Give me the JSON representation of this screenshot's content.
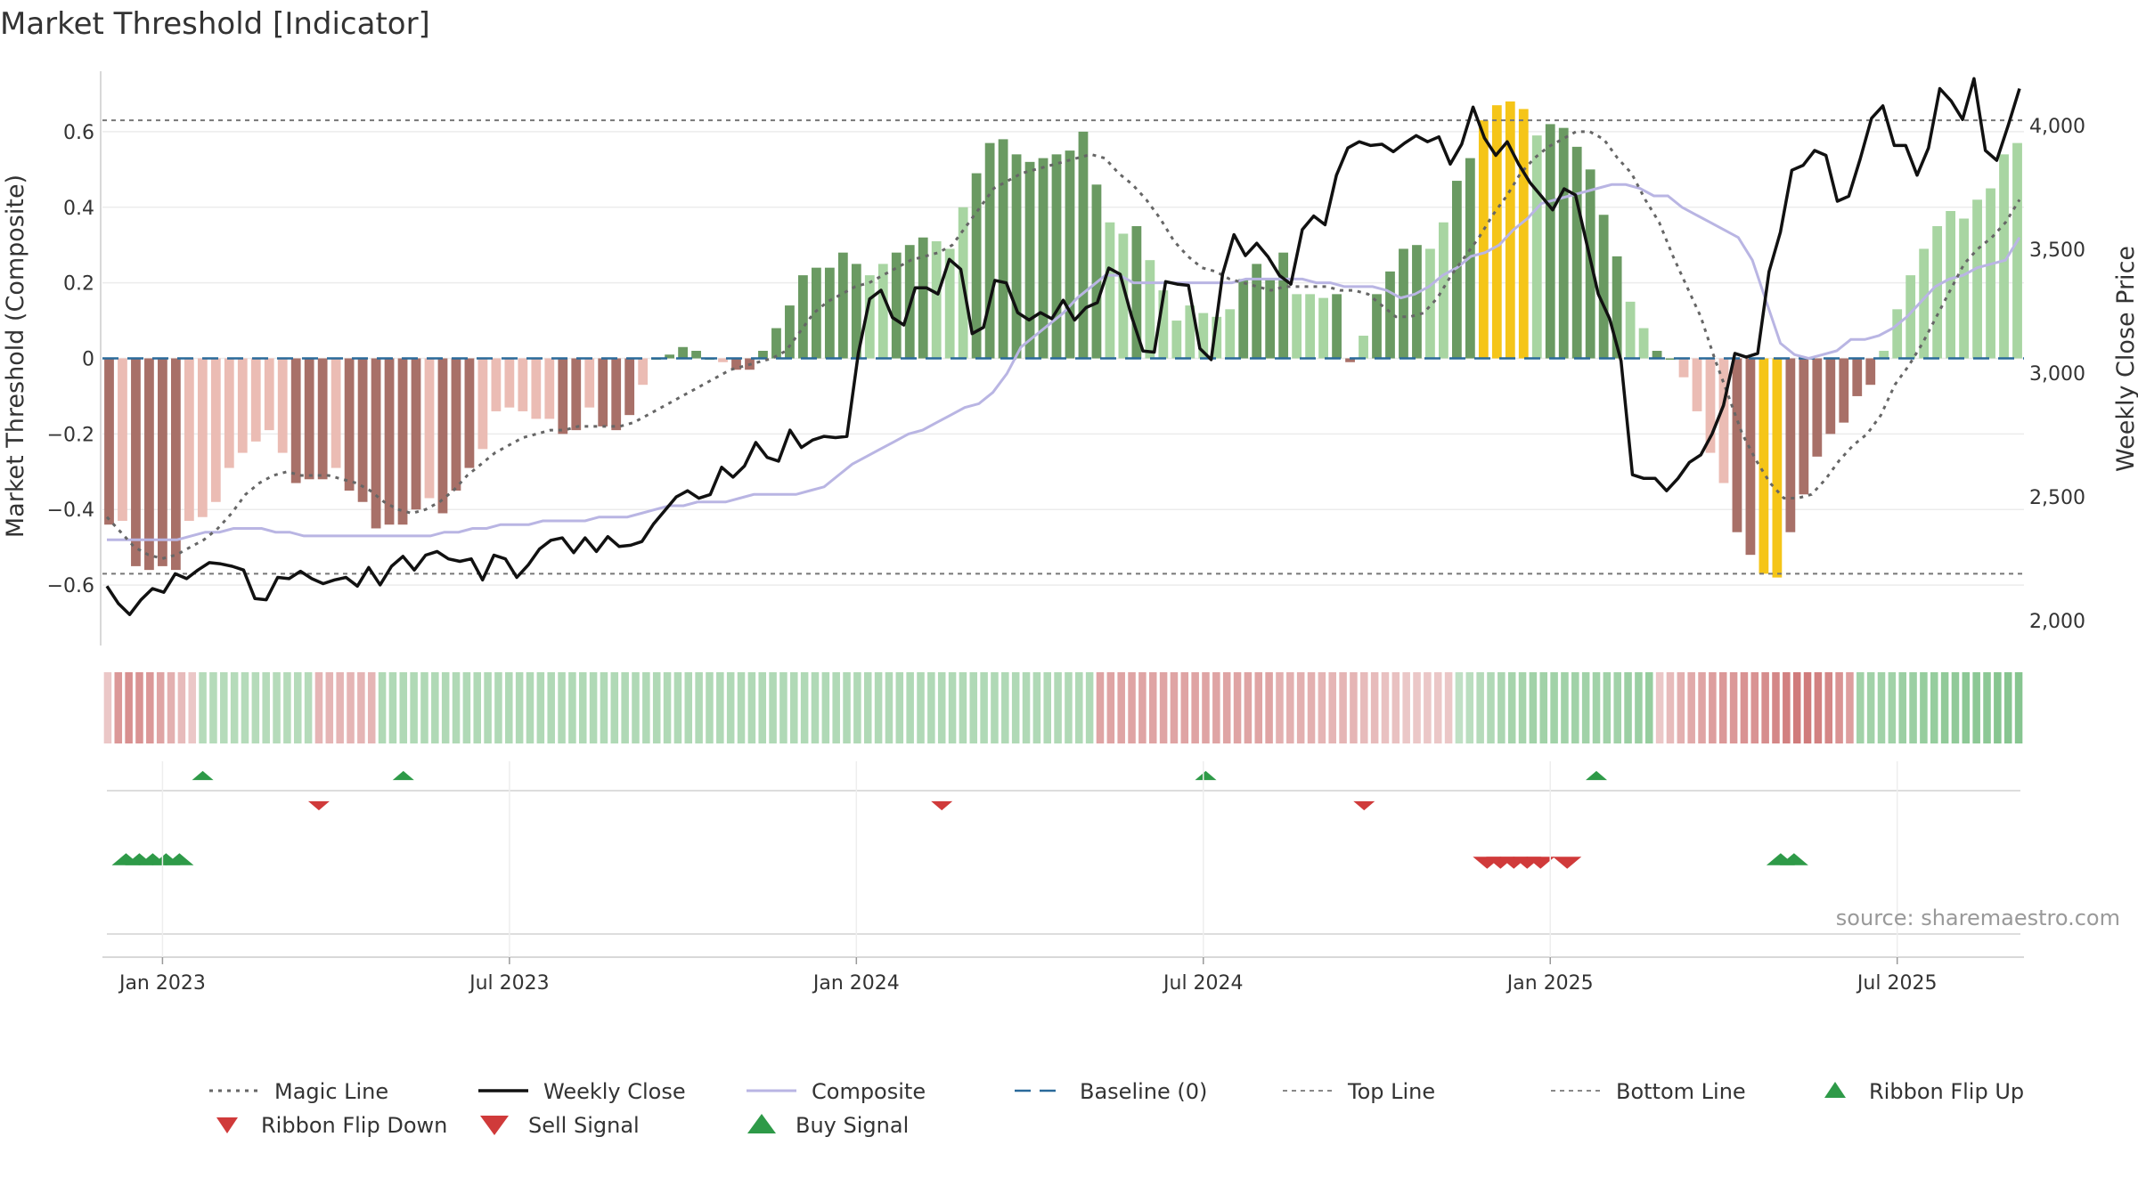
{
  "chart_data": {
    "type": "bar",
    "title": "Market Threshold [Indicator]",
    "ylabel": "Market Threshold (Composite)",
    "y2label": "Weekly Close Price",
    "source": "source: sharemaestro.com",
    "ylim": [
      -0.76,
      0.76
    ],
    "y2lim": [
      1900,
      4220
    ],
    "yticks": [
      {
        "v": 0.6,
        "label": "0.6"
      },
      {
        "v": 0.4,
        "label": "0.4"
      },
      {
        "v": 0.2,
        "label": "0.2"
      },
      {
        "v": 0,
        "label": "0"
      },
      {
        "v": -0.2,
        "label": "−0.2"
      },
      {
        "v": -0.4,
        "label": "−0.4"
      },
      {
        "v": -0.6,
        "label": "−0.6"
      }
    ],
    "y2ticks": [
      {
        "v": 4000,
        "label": "4,000"
      },
      {
        "v": 3500,
        "label": "3,500"
      },
      {
        "v": 3000,
        "label": "3,000"
      },
      {
        "v": 2500,
        "label": "2,500"
      },
      {
        "v": 2000,
        "label": "2,000"
      }
    ],
    "xticks": [
      {
        "i": 4,
        "label": "Jan 2023"
      },
      {
        "i": 30,
        "label": "Jul 2023"
      },
      {
        "i": 56,
        "label": "Jan 2024"
      },
      {
        "i": 82,
        "label": "Jul 2024"
      },
      {
        "i": 108,
        "label": "Jan 2025"
      },
      {
        "i": 134,
        "label": "Jul 2025"
      }
    ],
    "top_line": 0.63,
    "bottom_line": -0.57,
    "colors": {
      "yellow": "#f5c518",
      "dark_green": "#6a9a62",
      "light_green": "#a8d5a2",
      "dark_red": "#a87068",
      "light_red": "#ebbcb4",
      "close": "#111111",
      "composite": "#b9b5e3",
      "magic": "#666666",
      "baseline": "#2a6a9a",
      "buy": "#2e9a48",
      "sell": "#d03a3a"
    },
    "composite": [
      -0.44,
      -0.43,
      -0.55,
      -0.56,
      -0.55,
      -0.56,
      -0.43,
      -0.42,
      -0.38,
      -0.29,
      -0.25,
      -0.22,
      -0.19,
      -0.25,
      -0.33,
      -0.32,
      -0.32,
      -0.29,
      -0.35,
      -0.38,
      -0.45,
      -0.44,
      -0.44,
      -0.4,
      -0.37,
      -0.41,
      -0.35,
      -0.29,
      -0.24,
      -0.14,
      -0.13,
      -0.14,
      -0.16,
      -0.16,
      -0.2,
      -0.19,
      -0.13,
      -0.18,
      -0.19,
      -0.15,
      -0.07,
      0,
      0.01,
      0.03,
      0.02,
      0,
      -0.01,
      -0.03,
      -0.03,
      0.02,
      0.08,
      0.14,
      0.22,
      0.24,
      0.24,
      0.28,
      0.25,
      0.22,
      0.25,
      0.28,
      0.3,
      0.32,
      0.31,
      0.29,
      0.4,
      0.49,
      0.57,
      0.58,
      0.54,
      0.52,
      0.53,
      0.54,
      0.55,
      0.6,
      0.46,
      0.36,
      0.33,
      0.35,
      0.26,
      0.18,
      0.1,
      0.14,
      0.12,
      0.11,
      0.13,
      0.21,
      0.25,
      0.21,
      0.28,
      0.17,
      0.17,
      0.16,
      0.17,
      -0.01,
      0.06,
      0.17,
      0.23,
      0.29,
      0.3,
      0.29,
      0.36,
      0.47,
      0.53,
      0.63,
      0.67,
      0.68,
      0.66,
      0.59,
      0.62,
      0.61,
      0.56,
      0.5,
      0.38,
      0.27,
      0.15,
      0.08,
      0.02,
      0,
      -0.05,
      -0.14,
      -0.25,
      -0.33,
      -0.46,
      -0.52,
      -0.57,
      -0.58,
      -0.46,
      -0.36,
      -0.26,
      -0.2,
      -0.17,
      -0.1,
      -0.07,
      0.02,
      0.13,
      0.22,
      0.29,
      0.35,
      0.39,
      0.37,
      0.42,
      0.45,
      0.54,
      0.57
    ],
    "close": [
      2140,
      2070,
      2025,
      2085,
      2130,
      2115,
      2190,
      2170,
      2205,
      2235,
      2230,
      2220,
      2205,
      2090,
      2085,
      2175,
      2170,
      2200,
      2170,
      2150,
      2165,
      2175,
      2140,
      2215,
      2145,
      2220,
      2260,
      2205,
      2265,
      2280,
      2250,
      2240,
      2250,
      2165,
      2265,
      2250,
      2175,
      2225,
      2290,
      2325,
      2335,
      2275,
      2335,
      2280,
      2340,
      2300,
      2305,
      2320,
      2390,
      2445,
      2500,
      2525,
      2495,
      2510,
      2620,
      2580,
      2625,
      2720,
      2660,
      2645,
      2770,
      2700,
      2730,
      2745,
      2740,
      2745,
      3080,
      3300,
      3335,
      3225,
      3195,
      3345,
      3345,
      3320,
      3460,
      3420,
      3160,
      3185,
      3375,
      3365,
      3245,
      3215,
      3245,
      3220,
      3295,
      3215,
      3265,
      3285,
      3425,
      3400,
      3230,
      3090,
      3085,
      3370,
      3360,
      3355,
      3100,
      3055,
      3400,
      3560,
      3475,
      3525,
      3470,
      3395,
      3360,
      3580,
      3635,
      3600,
      3800,
      3910,
      3935,
      3920,
      3925,
      3895,
      3930,
      3960,
      3935,
      3955,
      3845,
      3925,
      4075,
      3950,
      3880,
      3935,
      3845,
      3770,
      3715,
      3660,
      3745,
      3720,
      3520,
      3320,
      3220,
      3050,
      2590,
      2575,
      2575,
      2525,
      2575,
      2640,
      2670,
      2755,
      2870,
      3080,
      3065,
      3080,
      3410,
      3570,
      3820,
      3840,
      3900,
      3880,
      3695,
      3715,
      3865,
      4030,
      4080,
      3920,
      3920,
      3800,
      3910,
      4150,
      4100,
      4025,
      4190,
      3900,
      3860,
      4000,
      4150
    ],
    "composite_line": [
      -0.48,
      -0.48,
      -0.48,
      -0.48,
      -0.48,
      -0.48,
      -0.47,
      -0.46,
      -0.46,
      -0.45,
      -0.45,
      -0.45,
      -0.46,
      -0.46,
      -0.47,
      -0.47,
      -0.47,
      -0.47,
      -0.47,
      -0.47,
      -0.47,
      -0.47,
      -0.47,
      -0.47,
      -0.46,
      -0.46,
      -0.45,
      -0.45,
      -0.44,
      -0.44,
      -0.44,
      -0.43,
      -0.43,
      -0.43,
      -0.43,
      -0.42,
      -0.42,
      -0.42,
      -0.41,
      -0.4,
      -0.39,
      -0.39,
      -0.38,
      -0.38,
      -0.38,
      -0.37,
      -0.36,
      -0.36,
      -0.36,
      -0.36,
      -0.35,
      -0.34,
      -0.31,
      -0.28,
      -0.26,
      -0.24,
      -0.22,
      -0.2,
      -0.19,
      -0.17,
      -0.15,
      -0.13,
      -0.12,
      -0.09,
      -0.04,
      0.03,
      0.06,
      0.09,
      0.12,
      0.16,
      0.19,
      0.22,
      0.22,
      0.2,
      0.2,
      0.2,
      0.2,
      0.2,
      0.2,
      0.2,
      0.2,
      0.21,
      0.21,
      0.21,
      0.21,
      0.21,
      0.2,
      0.2,
      0.19,
      0.19,
      0.19,
      0.18,
      0.16,
      0.17,
      0.19,
      0.22,
      0.24,
      0.27,
      0.28,
      0.3,
      0.34,
      0.37,
      0.41,
      0.42,
      0.43,
      0.44,
      0.45,
      0.46,
      0.46,
      0.45,
      0.43,
      0.43,
      0.4,
      0.38,
      0.36,
      0.34,
      0.32,
      0.26,
      0.15,
      0.04,
      0.01,
      0,
      0.01,
      0.02,
      0.05,
      0.05,
      0.06,
      0.08,
      0.11,
      0.15,
      0.19,
      0.21,
      0.22,
      0.24,
      0.25,
      0.26,
      0.32
    ],
    "magic_line": [
      -0.42,
      -0.46,
      -0.5,
      -0.52,
      -0.53,
      -0.52,
      -0.5,
      -0.48,
      -0.45,
      -0.41,
      -0.36,
      -0.33,
      -0.31,
      -0.3,
      -0.31,
      -0.31,
      -0.31,
      -0.32,
      -0.33,
      -0.35,
      -0.38,
      -0.4,
      -0.41,
      -0.4,
      -0.38,
      -0.35,
      -0.31,
      -0.28,
      -0.25,
      -0.23,
      -0.21,
      -0.2,
      -0.19,
      -0.19,
      -0.18,
      -0.18,
      -0.18,
      -0.18,
      -0.17,
      -0.15,
      -0.13,
      -0.11,
      -0.09,
      -0.07,
      -0.05,
      -0.03,
      -0.02,
      -0.01,
      0,
      0.02,
      0.07,
      0.12,
      0.15,
      0.17,
      0.19,
      0.2,
      0.22,
      0.24,
      0.26,
      0.27,
      0.28,
      0.3,
      0.35,
      0.4,
      0.45,
      0.47,
      0.49,
      0.5,
      0.51,
      0.52,
      0.53,
      0.54,
      0.53,
      0.49,
      0.46,
      0.42,
      0.37,
      0.31,
      0.27,
      0.24,
      0.23,
      0.21,
      0.2,
      0.19,
      0.18,
      0.19,
      0.19,
      0.19,
      0.19,
      0.18,
      0.18,
      0.17,
      0.14,
      0.11,
      0.11,
      0.12,
      0.16,
      0.22,
      0.27,
      0.32,
      0.38,
      0.43,
      0.49,
      0.53,
      0.56,
      0.58,
      0.6,
      0.6,
      0.58,
      0.53,
      0.49,
      0.42,
      0.36,
      0.27,
      0.19,
      0.11,
      0,
      -0.1,
      -0.2,
      -0.27,
      -0.33,
      -0.37,
      -0.37,
      -0.36,
      -0.32,
      -0.27,
      -0.23,
      -0.2,
      -0.15,
      -0.07,
      -0.02,
      0.04,
      0.11,
      0.18,
      0.25,
      0.29,
      0.32,
      0.36,
      0.42
    ],
    "ribbon": [
      -0.15,
      -0.55,
      -0.62,
      -0.6,
      -0.55,
      -0.45,
      -0.35,
      -0.25,
      -0.15,
      0.4,
      0.4,
      0.4,
      0.4,
      0.4,
      0.4,
      0.4,
      0.4,
      0.4,
      0.4,
      0.4,
      -0.3,
      -0.3,
      -0.3,
      -0.3,
      -0.3,
      -0.3,
      0.45,
      0.45,
      0.45,
      0.45,
      0.45,
      0.45,
      0.45,
      0.45,
      0.45,
      0.45,
      0.45,
      0.45,
      0.45,
      0.45,
      0.45,
      0.45,
      0.45,
      0.45,
      0.45,
      0.45,
      0.45,
      0.45,
      0.45,
      0.45,
      0.45,
      0.45,
      0.45,
      0.45,
      0.45,
      0.45,
      0.45,
      0.45,
      0.45,
      0.45,
      0.45,
      0.45,
      0.45,
      0.45,
      0.45,
      0.45,
      0.45,
      0.45,
      0.45,
      0.45,
      0.45,
      0.45,
      0.45,
      0.45,
      0.45,
      0.45,
      0.45,
      0.45,
      0.45,
      0.45,
      0.45,
      0.45,
      0.45,
      0.45,
      0.45,
      0.45,
      0.45,
      0.45,
      0.45,
      0.45,
      0.45,
      0.45,
      0.45,
      0.45,
      -0.45,
      -0.45,
      -0.45,
      -0.45,
      -0.45,
      -0.45,
      -0.45,
      -0.45,
      -0.45,
      -0.45,
      -0.45,
      -0.45,
      -0.45,
      -0.45,
      -0.45,
      -0.45,
      -0.45,
      -0.35,
      -0.35,
      -0.35,
      -0.35,
      -0.3,
      -0.3,
      -0.3,
      -0.3,
      -0.25,
      -0.25,
      -0.2,
      -0.2,
      -0.15,
      -0.15,
      -0.15,
      -0.15,
      -0.15,
      0.3,
      0.35,
      0.4,
      0.45,
      0.5,
      0.55,
      0.55,
      0.6,
      0.6,
      0.6,
      0.6,
      0.6,
      0.6,
      0.6,
      0.6,
      0.6,
      0.65,
      0.65,
      0.7,
      -0.15,
      -0.25,
      -0.35,
      -0.4,
      -0.45,
      -0.5,
      -0.55,
      -0.55,
      -0.6,
      -0.6,
      -0.65,
      -0.7,
      -0.75,
      -0.8,
      -0.8,
      -0.75,
      -0.7,
      -0.6,
      -0.5,
      0.6,
      0.6,
      0.6,
      0.6,
      0.65,
      0.65,
      0.7,
      0.7,
      0.75,
      0.75,
      0.8,
      0.8,
      0.8,
      0.85,
      0.85,
      0.85
    ],
    "ribbon_flip_up": [
      9,
      28,
      104,
      141
    ],
    "ribbon_flip_down": [
      20,
      79,
      119
    ],
    "sell_signal": [
      103,
      104,
      105,
      106,
      107,
      109
    ],
    "buy_signal": [
      1,
      2,
      3,
      4,
      5,
      125,
      126
    ],
    "legend": [
      {
        "key": "magic",
        "label": "Magic Line"
      },
      {
        "key": "close",
        "label": "Weekly Close"
      },
      {
        "key": "composite",
        "label": "Composite"
      },
      {
        "key": "baseline",
        "label": "Baseline (0)"
      },
      {
        "key": "top",
        "label": "Top Line"
      },
      {
        "key": "bottom",
        "label": "Bottom Line"
      },
      {
        "key": "flipup",
        "label": "Ribbon Flip Up"
      },
      {
        "key": "flipdown",
        "label": "Ribbon Flip Down"
      },
      {
        "key": "sell",
        "label": "Sell Signal"
      },
      {
        "key": "buy",
        "label": "Buy Signal"
      }
    ]
  }
}
